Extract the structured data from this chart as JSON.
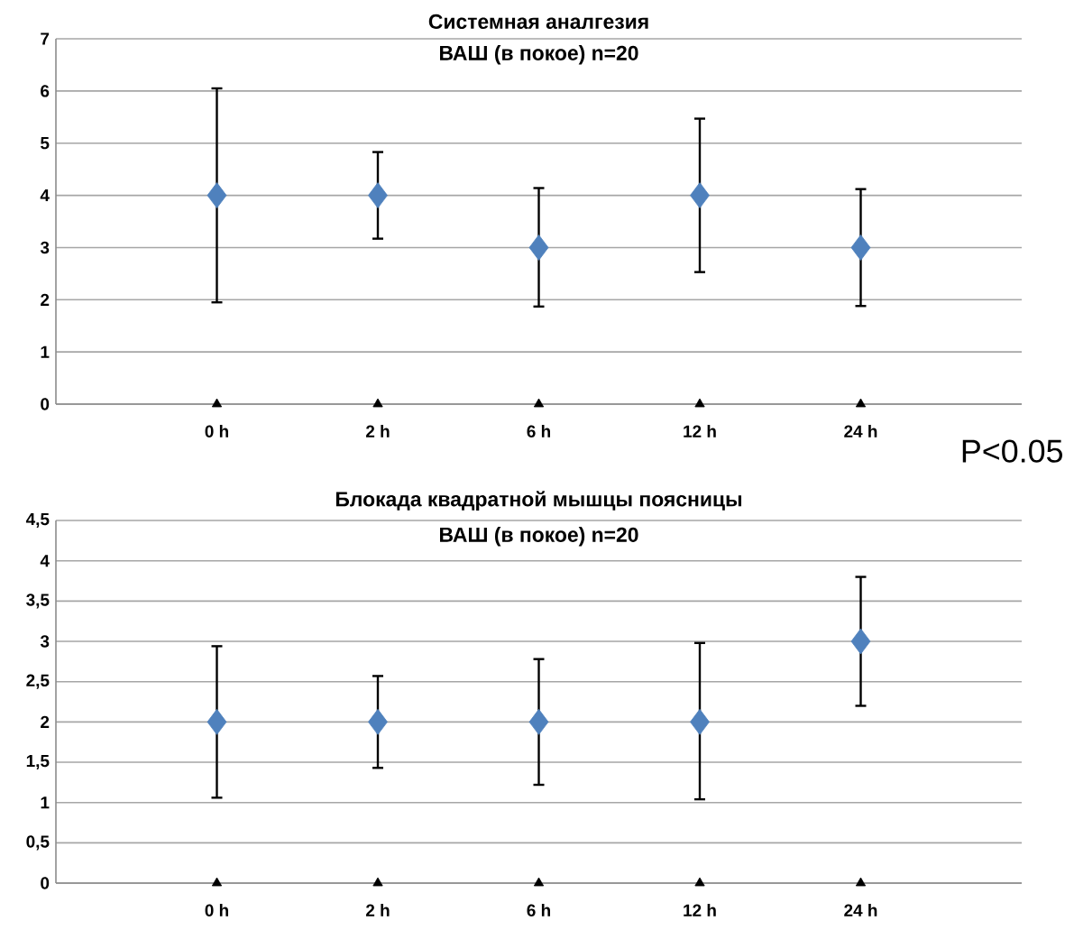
{
  "chart_data": [
    {
      "type": "scatter",
      "title": "Системная аналгезия",
      "subtitle": "ВАШ (в покое) n=20",
      "categories": [
        "0 h",
        "2 h",
        "6 h",
        "12 h",
        "24 h"
      ],
      "series": [
        {
          "color": "#4f81bd",
          "marker": "diamond",
          "values": [
            4,
            4,
            3,
            4,
            3
          ],
          "errors": [
            [
              1.95,
              6.05
            ],
            [
              3.17,
              4.83
            ],
            [
              1.87,
              4.14
            ],
            [
              2.53,
              5.47
            ],
            [
              1.88,
              4.12
            ]
          ]
        },
        {
          "color": "#000000",
          "marker": "triangle",
          "values": [
            0,
            0,
            0,
            0,
            0
          ]
        }
      ],
      "ylim": [
        0,
        7
      ],
      "yticks": [
        0,
        1,
        2,
        3,
        4,
        5,
        6,
        7
      ],
      "grid": "y",
      "annotations": [
        "P<0.05"
      ]
    },
    {
      "type": "scatter",
      "title": "Блокада квадратной мышцы поясницы",
      "subtitle": "ВАШ (в покое) n=20",
      "categories": [
        "0 h",
        "2 h",
        "6 h",
        "12 h",
        "24 h"
      ],
      "series": [
        {
          "color": "#4f81bd",
          "marker": "diamond",
          "values": [
            2,
            2,
            2,
            2,
            3
          ],
          "errors": [
            [
              1.06,
              2.94
            ],
            [
              1.43,
              2.57
            ],
            [
              1.22,
              2.78
            ],
            [
              1.04,
              2.98
            ],
            [
              2.2,
              3.8
            ]
          ]
        },
        {
          "color": "#000000",
          "marker": "triangle",
          "values": [
            0,
            0,
            0,
            0,
            0
          ]
        }
      ],
      "ylim": [
        0,
        4.5
      ],
      "yticks": [
        0,
        {
          "value": 0.5,
          "label": "0,5"
        },
        1,
        {
          "value": 1.5,
          "label": "1,5"
        },
        2,
        {
          "value": 2.5,
          "label": "2,5"
        },
        3,
        {
          "value": 3.5,
          "label": "3,5"
        },
        4,
        {
          "value": 4.5,
          "label": "4,5"
        }
      ],
      "grid": "y"
    }
  ]
}
